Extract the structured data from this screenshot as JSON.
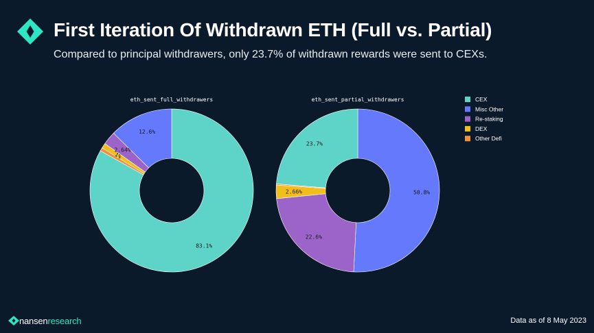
{
  "header": {
    "title": "First Iteration Of Withdrawn ETH (Full vs. Partial)",
    "subtitle": "Compared to principal withdrawers, only 23.7% of withdrawn rewards were sent to CEXs."
  },
  "colors": {
    "background": "#0b1a2a",
    "brand_accent": "#2ee6c3",
    "CEX": "#5ed4c8",
    "Misc Other": "#6479fb",
    "Re-staking": "#9c63c9",
    "DEX": "#f2be1e",
    "Other Defi": "#f0903a"
  },
  "chart_data": [
    {
      "type": "pie",
      "donut": true,
      "title": "eth_sent_full_withdrawers",
      "slices": [
        {
          "label": "CEX",
          "value": 83.1,
          "display": "83.1%"
        },
        {
          "label": "Misc Other",
          "value": 12.6,
          "display": "12.6%"
        },
        {
          "label": "Re-staking",
          "value": 2.64,
          "display": "2.64%"
        },
        {
          "label": "DEX",
          "value": 1.0,
          "display": "1%"
        },
        {
          "label": "Other Defi",
          "value": 0.66,
          "display": ""
        }
      ]
    },
    {
      "type": "pie",
      "donut": true,
      "title": "eth_sent_partial_withdrawers",
      "slices": [
        {
          "label": "CEX",
          "value": 23.7,
          "display": "23.7%"
        },
        {
          "label": "Misc Other",
          "value": 50.8,
          "display": "50.8%"
        },
        {
          "label": "Re-staking",
          "value": 22.6,
          "display": "22.6%"
        },
        {
          "label": "DEX",
          "value": 2.66,
          "display": "2.66%"
        },
        {
          "label": "Other Defi",
          "value": 0.24,
          "display": ""
        }
      ]
    }
  ],
  "legend": {
    "items": [
      "CEX",
      "Misc Other",
      "Re-staking",
      "DEX",
      "Other Defi"
    ]
  },
  "footer": {
    "brand_primary": "nansen",
    "brand_secondary": "research",
    "note": "Data as of 8 May 2023"
  }
}
